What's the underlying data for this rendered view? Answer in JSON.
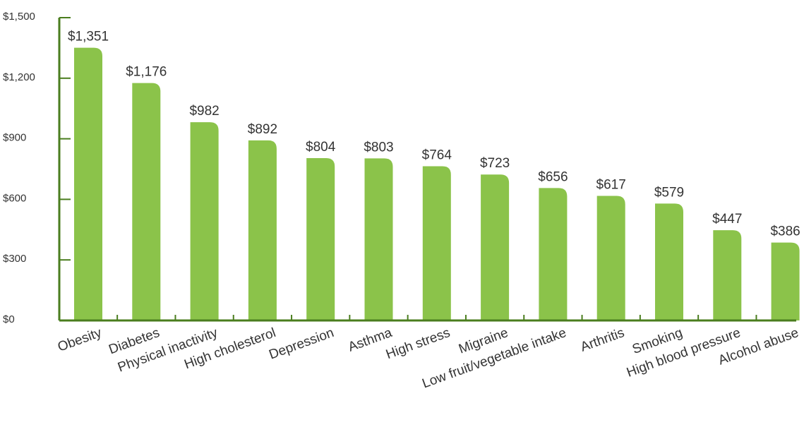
{
  "chart_data": {
    "type": "bar",
    "categories": [
      "Obesity",
      "Diabetes",
      "Physical inactivity",
      "High cholesterol",
      "Depression",
      "Asthma",
      "High stress",
      "Migraine",
      "Low fruit/vegetable intake",
      "Arthritis",
      "Smoking",
      "High blood pressure",
      "Alcohol abuse"
    ],
    "values": [
      1351,
      1176,
      982,
      892,
      804,
      803,
      764,
      723,
      656,
      617,
      579,
      447,
      386
    ],
    "value_labels": [
      "$1,351",
      "$1,176",
      "$982",
      "$892",
      "$804",
      "$803",
      "$764",
      "$723",
      "$656",
      "$617",
      "$579",
      "$447",
      "$386"
    ],
    "y_ticks": [
      0,
      300,
      600,
      900,
      1200,
      1500
    ],
    "y_tick_labels": [
      "$0",
      "$300",
      "$600",
      "$900",
      "$1,200",
      "$1,500"
    ],
    "ylim": [
      0,
      1500
    ],
    "grid": false,
    "bar_color": "#8bc34a",
    "axis_color": "#4a7d1e"
  }
}
